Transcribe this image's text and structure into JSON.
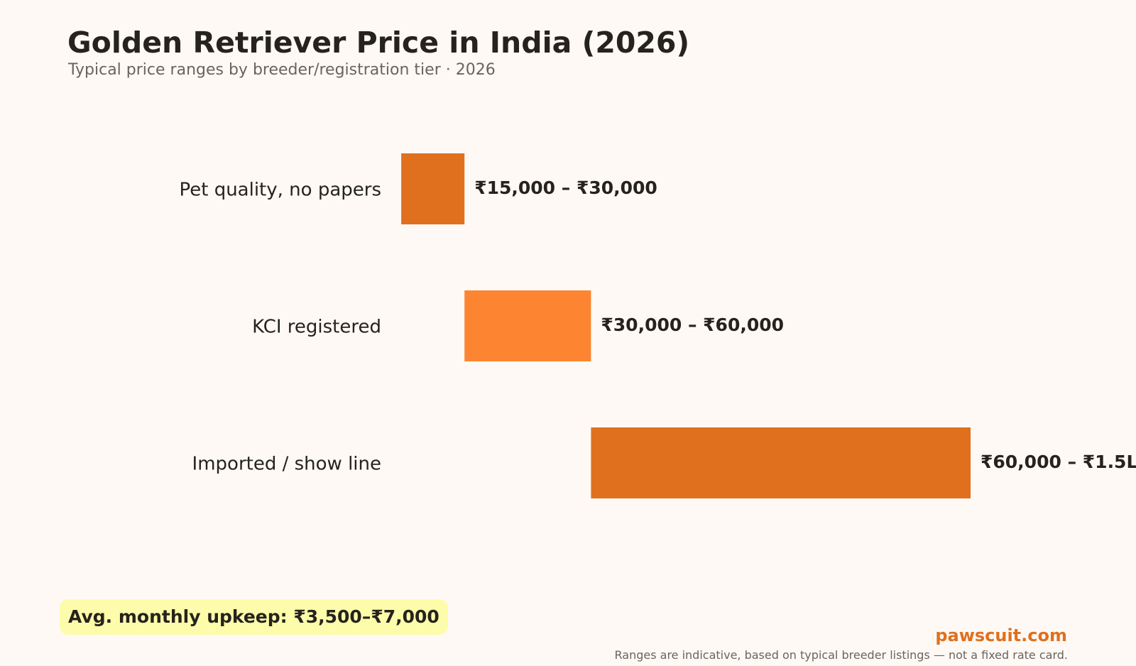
{
  "header": {
    "title": "Golden Retriever Price in India (2026)",
    "subtitle": "Typical price ranges by breeder/registration tier · 2026"
  },
  "chart_data": {
    "type": "bar",
    "orientation": "horizontal-range",
    "title": "Golden Retriever Price in India (2026)",
    "subtitle": "Typical price ranges by breeder/registration tier · 2026",
    "xlabel": "",
    "ylabel": "",
    "grid": false,
    "xlim": [
      0,
      150000
    ],
    "categories": [
      "Pet quality, no papers",
      "KCI registered",
      "Imported / show line"
    ],
    "ranges": [
      {
        "low": 15000,
        "high": 30000,
        "label": "₹15,000 – ₹30,000",
        "color": "#e0701e"
      },
      {
        "low": 30000,
        "high": 60000,
        "label": "₹30,000 – ₹60,000",
        "color": "#fd8531"
      },
      {
        "low": 60000,
        "high": 150000,
        "label": "₹60,000 – ₹1.5L",
        "color": "#e0701e"
      }
    ]
  },
  "callout": {
    "upkeep": "Avg. monthly upkeep: ₹3,500–₹7,000"
  },
  "footer": {
    "brand": "pawscuit.com",
    "note": "Ranges are indicative, based on typical breeder listings — not a fixed rate card."
  }
}
